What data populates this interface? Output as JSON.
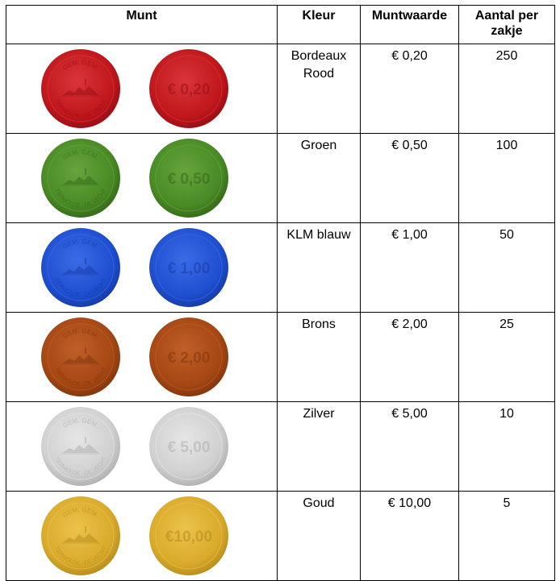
{
  "headers": {
    "munt": "Munt",
    "kleur": "Kleur",
    "muntwaarde": "Muntwaarde",
    "aantal": "Aantal per zakje"
  },
  "coin_text": {
    "top": "GEM. GEM.",
    "bottom": "TERWOLDE - DE VECHT"
  },
  "rows": [
    {
      "kleur": "Bordeaux Rood",
      "muntwaarde": "€ 0,20",
      "aantal": "250",
      "coin_label": "€ 0,20",
      "coin_color": "#c0161c",
      "coin_light": "#d9363b",
      "coin_dark": "#8e0d12"
    },
    {
      "kleur": "Groen",
      "muntwaarde": "€ 0,50",
      "aantal": "100",
      "coin_label": "€ 0,50",
      "coin_color": "#4a8a25",
      "coin_light": "#66a53c",
      "coin_dark": "#316216"
    },
    {
      "kleur": "KLM blauw",
      "muntwaarde": "€ 1,00",
      "aantal": "50",
      "coin_label": "€ 1,00",
      "coin_color": "#1e4fd0",
      "coin_light": "#3d6be6",
      "coin_dark": "#1337a0"
    },
    {
      "kleur": "Brons",
      "muntwaarde": "€ 2,00",
      "aantal": "25",
      "coin_label": "€ 2,00",
      "coin_color": "#a54714",
      "coin_light": "#c05f28",
      "coin_dark": "#7a320b"
    },
    {
      "kleur": "Zilver",
      "muntwaarde": "€ 5,00",
      "aantal": "10",
      "coin_label": "€ 5,00",
      "coin_color": "#d0d0d0",
      "coin_light": "#e6e6e6",
      "coin_dark": "#a9a9a9"
    },
    {
      "kleur": "Goud",
      "muntwaarde": "€ 10,00",
      "aantal": "5",
      "coin_label": "€10,00",
      "coin_color": "#d9aa2c",
      "coin_light": "#ebc34a",
      "coin_dark": "#b08618"
    }
  ]
}
